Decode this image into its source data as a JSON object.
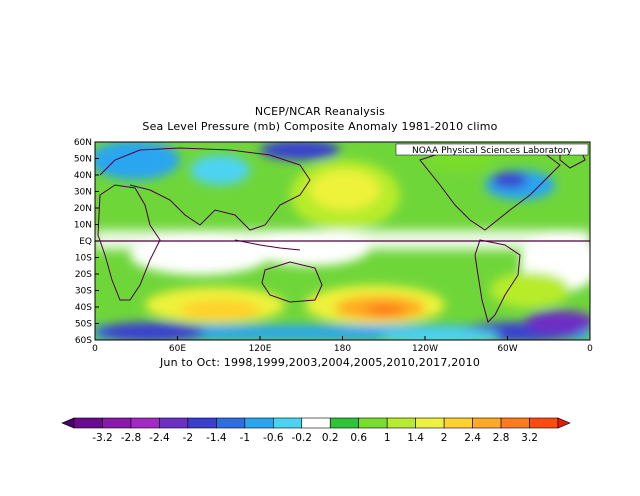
{
  "title": {
    "line1": "NCEP/NCAR Reanalysis",
    "line2": "Sea Level Pressure (mb) Composite Anomaly 1981-2010 climo"
  },
  "credit": "NOAA Physical Sciences Laboratory",
  "caption": "Jun to Oct: 1998,1999,2003,2004,2005,2010,2017,2010",
  "map": {
    "projection": "cylindrical",
    "lon_range": [
      0,
      360
    ],
    "lat_range": [
      -60,
      60
    ],
    "y_ticks": [
      "60N",
      "50N",
      "40N",
      "30N",
      "20N",
      "10N",
      "EQ",
      "10S",
      "20S",
      "30S",
      "40S",
      "50S",
      "60S"
    ],
    "x_ticks": [
      "0",
      "60E",
      "120E",
      "180",
      "120W",
      "60W",
      "0"
    ],
    "equator_line": true
  },
  "colorbar": {
    "labels": [
      "-3.2",
      "-2.8",
      "-2.4",
      "-2",
      "-1.4",
      "-1",
      "-0.6",
      "-0.2",
      "0.2",
      "0.6",
      "1",
      "1.4",
      "2",
      "2.4",
      "2.8",
      "3.2"
    ],
    "colors": [
      "#4b006b",
      "#6a0a8c",
      "#8a1aa8",
      "#a02bc0",
      "#6d2fc4",
      "#3a3fd0",
      "#2f6ee0",
      "#2aa5f0",
      "#4dd3f2",
      "#ffffff",
      "#2fc23a",
      "#79dd2a",
      "#b7ec2a",
      "#eef23a",
      "#ffd12a",
      "#ffaa22",
      "#ff7a1a",
      "#ff4a12",
      "#e51a0a"
    ]
  }
}
